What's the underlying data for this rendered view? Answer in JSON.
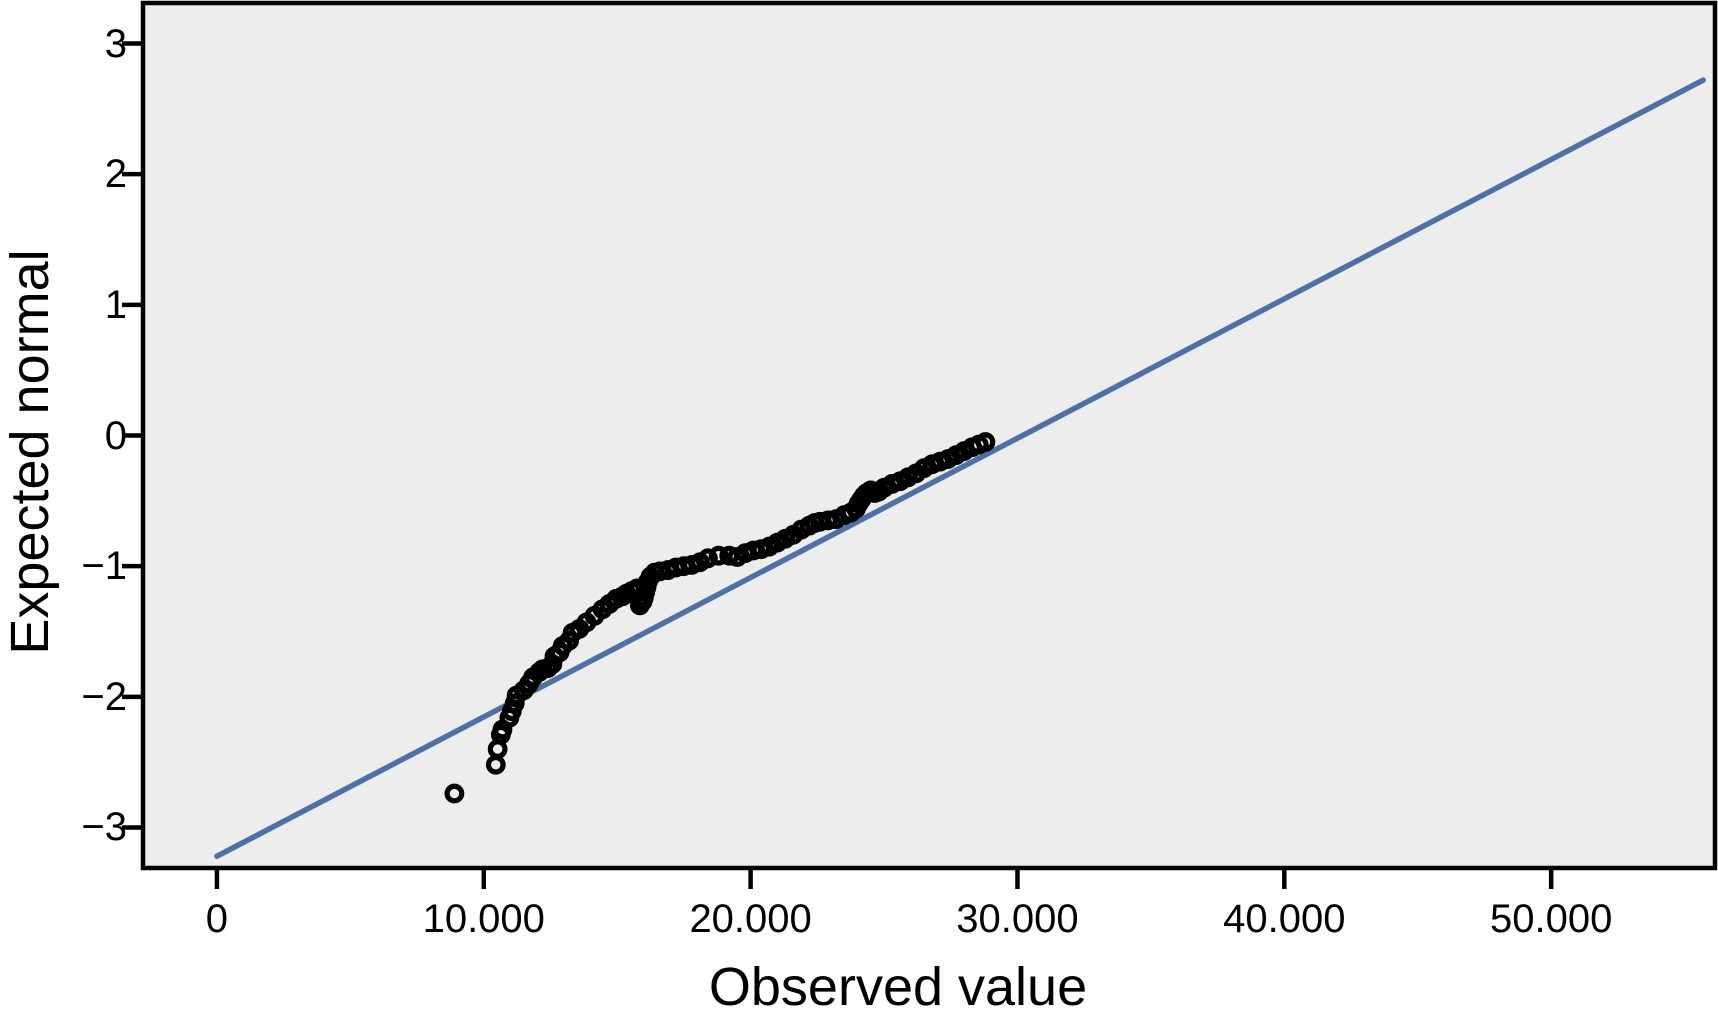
{
  "figure": {
    "background_color": "#ffffff",
    "plot_background_color": "#ededed",
    "frame_color": "#000000",
    "text_color": "#000000"
  },
  "chart_data": {
    "type": "scatter",
    "variant": "normal-qq-plot",
    "title": "",
    "xlabel": "Observed value",
    "ylabel": "Expected normal",
    "grid": false,
    "legend": "none",
    "xlim": [
      -2770,
      56140
    ],
    "ylim": [
      -3.31,
      3.31
    ],
    "x_ticks": {
      "values": [
        0,
        10000,
        20000,
        30000,
        40000,
        50000
      ],
      "labels": [
        "0",
        "10.000",
        "20.000",
        "30.000",
        "40.000",
        "50.000"
      ]
    },
    "y_ticks": {
      "values": [
        3,
        2,
        1,
        0,
        -1,
        -2,
        -3
      ],
      "labels": [
        "3",
        "2",
        "1",
        "0",
        "−1",
        "−2",
        "−3"
      ]
    },
    "reference_line": {
      "x1": 0,
      "y1": -3.22,
      "x2": 55700,
      "y2": 2.72,
      "color": "#4d71a6"
    },
    "marker": {
      "shape": "open-circle",
      "color": "#000000"
    },
    "series": [
      {
        "name": "observed-vs-expected-normal",
        "points": [
          [
            8900,
            -2.74
          ],
          [
            10450,
            -2.52
          ],
          [
            10520,
            -2.4
          ],
          [
            10640,
            -2.29
          ],
          [
            10700,
            -2.25
          ],
          [
            10960,
            -2.16
          ],
          [
            11050,
            -2.11
          ],
          [
            11160,
            -2.05
          ],
          [
            11230,
            -1.99
          ],
          [
            11500,
            -1.95
          ],
          [
            11700,
            -1.9
          ],
          [
            11850,
            -1.85
          ],
          [
            12080,
            -1.81
          ],
          [
            12200,
            -1.79
          ],
          [
            12400,
            -1.78
          ],
          [
            12570,
            -1.75
          ],
          [
            12650,
            -1.69
          ],
          [
            12840,
            -1.66
          ],
          [
            12960,
            -1.61
          ],
          [
            13200,
            -1.57
          ],
          [
            13330,
            -1.51
          ],
          [
            13580,
            -1.48
          ],
          [
            13850,
            -1.43
          ],
          [
            14150,
            -1.38
          ],
          [
            14450,
            -1.33
          ],
          [
            14700,
            -1.29
          ],
          [
            14960,
            -1.25
          ],
          [
            15200,
            -1.23
          ],
          [
            15350,
            -1.21
          ],
          [
            15550,
            -1.19
          ],
          [
            15750,
            -1.17
          ],
          [
            15850,
            -1.3
          ],
          [
            15950,
            -1.27
          ],
          [
            16000,
            -1.24
          ],
          [
            16050,
            -1.2
          ],
          [
            16100,
            -1.16
          ],
          [
            16150,
            -1.12
          ],
          [
            16250,
            -1.08
          ],
          [
            16400,
            -1.05
          ],
          [
            16600,
            -1.04
          ],
          [
            16900,
            -1.03
          ],
          [
            17200,
            -1.01
          ],
          [
            17500,
            -1.0
          ],
          [
            17800,
            -0.99
          ],
          [
            18100,
            -0.97
          ],
          [
            18400,
            -0.94
          ],
          [
            18800,
            -0.92
          ],
          [
            19200,
            -0.92
          ],
          [
            19500,
            -0.93
          ],
          [
            19800,
            -0.9
          ],
          [
            20100,
            -0.88
          ],
          [
            20400,
            -0.87
          ],
          [
            20700,
            -0.85
          ],
          [
            21000,
            -0.82
          ],
          [
            21300,
            -0.79
          ],
          [
            21600,
            -0.76
          ],
          [
            21900,
            -0.72
          ],
          [
            22200,
            -0.69
          ],
          [
            22400,
            -0.67
          ],
          [
            22600,
            -0.66
          ],
          [
            22900,
            -0.65
          ],
          [
            23200,
            -0.64
          ],
          [
            23500,
            -0.61
          ],
          [
            23750,
            -0.59
          ],
          [
            23950,
            -0.56
          ],
          [
            24050,
            -0.52
          ],
          [
            24150,
            -0.49
          ],
          [
            24250,
            -0.46
          ],
          [
            24350,
            -0.44
          ],
          [
            24500,
            -0.42
          ],
          [
            24650,
            -0.44
          ],
          [
            24800,
            -0.43
          ],
          [
            25000,
            -0.4
          ],
          [
            25300,
            -0.37
          ],
          [
            25600,
            -0.35
          ],
          [
            25900,
            -0.32
          ],
          [
            26200,
            -0.29
          ],
          [
            26500,
            -0.25
          ],
          [
            26800,
            -0.22
          ],
          [
            27100,
            -0.2
          ],
          [
            27400,
            -0.18
          ],
          [
            27700,
            -0.15
          ],
          [
            28000,
            -0.12
          ],
          [
            28300,
            -0.09
          ],
          [
            28550,
            -0.07
          ],
          [
            28800,
            -0.05
          ]
        ]
      }
    ]
  }
}
